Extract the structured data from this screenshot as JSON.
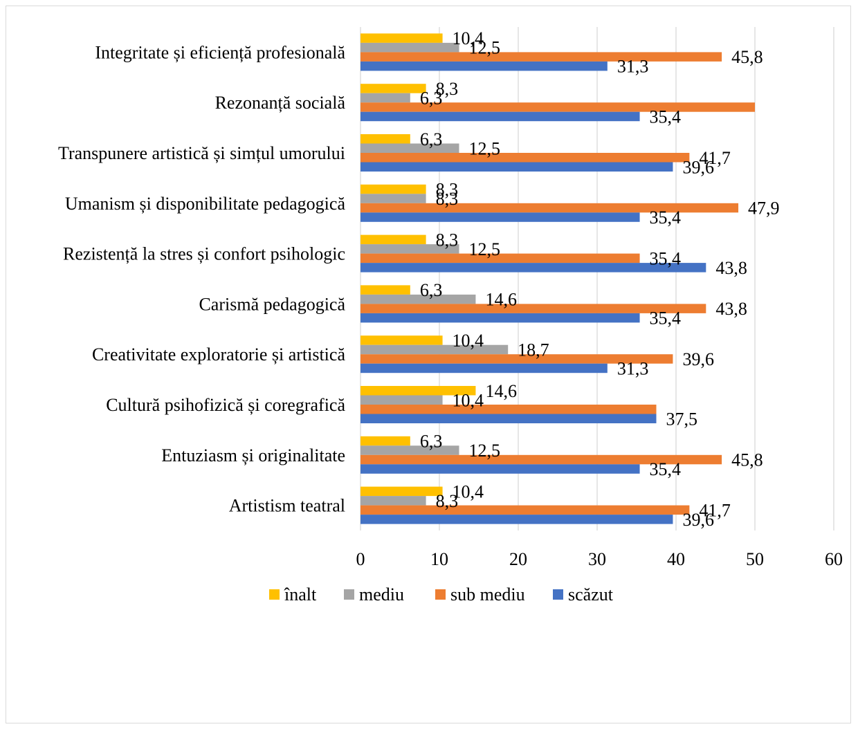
{
  "chart_data": {
    "type": "bar",
    "orientation": "horizontal",
    "categories": [
      "Integritate și eficiență profesională",
      "Rezonanță socială",
      "Transpunere artistică și simțul umorului",
      "Umanism și disponibilitate pedagogică",
      "Rezistență la stres și confort psihologic",
      "Carismă pedagogică",
      "Creativitate exploratorie și artistică",
      "Cultură psihofizică și coregrafică",
      "Entuziasm și originalitate",
      "Artistism teatral"
    ],
    "series": [
      {
        "name": "înalt",
        "color": "#FFC000",
        "values": [
          10.4,
          8.3,
          6.3,
          8.3,
          8.3,
          6.3,
          10.4,
          14.6,
          6.3,
          10.4
        ],
        "labels": [
          "10,4",
          "8,3",
          "6,3",
          "8,3",
          "8,3",
          "6,3",
          "10,4",
          "14,6",
          "6,3",
          "10,4"
        ]
      },
      {
        "name": "mediu",
        "color": "#A5A5A5",
        "values": [
          12.5,
          6.3,
          12.5,
          8.3,
          12.5,
          14.6,
          18.7,
          10.4,
          12.5,
          8.3
        ],
        "labels": [
          "12,5",
          "6,3",
          "12,5",
          "8,3",
          "12,5",
          "14,6",
          "18,7",
          "10,4",
          "12,5",
          "8,3"
        ]
      },
      {
        "name": "sub mediu",
        "color": "#ED7D31",
        "values": [
          45.8,
          50,
          41.7,
          47.9,
          35.4,
          43.8,
          39.6,
          37.5,
          45.8,
          41.7
        ],
        "labels": [
          "45,8",
          "",
          "41,7",
          "47,9",
          "35,4",
          "43,8",
          "39,6",
          "",
          "45,8",
          "41,7"
        ]
      },
      {
        "name": "scăzut",
        "color": "#4472C4",
        "values": [
          31.3,
          35.4,
          39.6,
          35.4,
          43.8,
          35.4,
          31.3,
          37.5,
          35.4,
          39.6
        ],
        "labels": [
          "31,3",
          "35,4",
          "39,6",
          "35,4",
          "43,8",
          "35,4",
          "31,3",
          "37,5",
          "35,4",
          "39,6"
        ]
      }
    ],
    "xlim": [
      0,
      60
    ],
    "xticks": [
      "0",
      "10",
      "20",
      "30",
      "40",
      "50",
      "60"
    ],
    "grid": true,
    "legend_position": "bottom"
  }
}
